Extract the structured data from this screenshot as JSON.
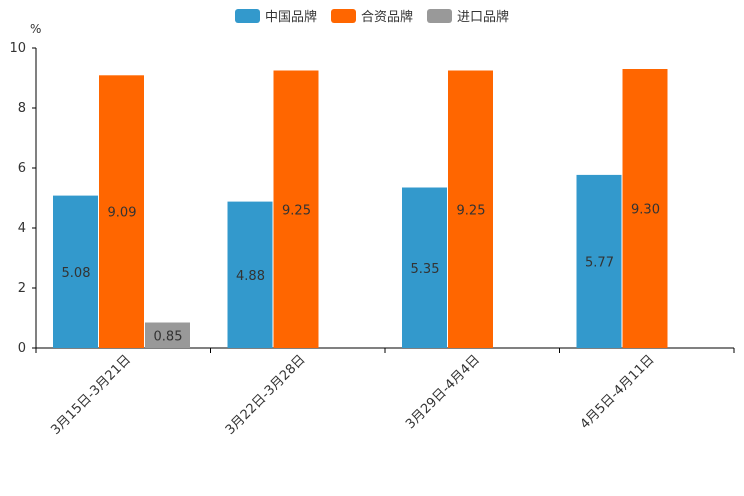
{
  "chart_data": {
    "type": "bar",
    "unit_label": "%",
    "categories": [
      "3月15日-3月21日",
      "3月22日-3月28日",
      "3月29日-4月4日",
      "4月5日-4月11日"
    ],
    "series": [
      {
        "name": "中国品牌",
        "color": "#3399cc",
        "values": [
          5.08,
          4.88,
          5.35,
          5.77
        ]
      },
      {
        "name": "合资品牌",
        "color": "#ff6600",
        "values": [
          9.09,
          9.25,
          9.25,
          9.3
        ]
      },
      {
        "name": "进口品牌",
        "color": "#999999",
        "values": [
          0.85,
          null,
          null,
          null
        ]
      }
    ],
    "data_labels": [
      [
        "5.08",
        "4.88",
        "5.35",
        "5.77"
      ],
      [
        "9.09",
        "9.25",
        "9.25",
        "9.30"
      ],
      [
        "0.85",
        null,
        null,
        null
      ]
    ],
    "ylim": [
      0,
      10
    ],
    "yticks": [
      0,
      2,
      4,
      6,
      8,
      10
    ],
    "ytick_labels": [
      "0",
      "2",
      "4",
      "6",
      "8",
      "10"
    ],
    "legend_position": "top-center",
    "grid": false
  }
}
